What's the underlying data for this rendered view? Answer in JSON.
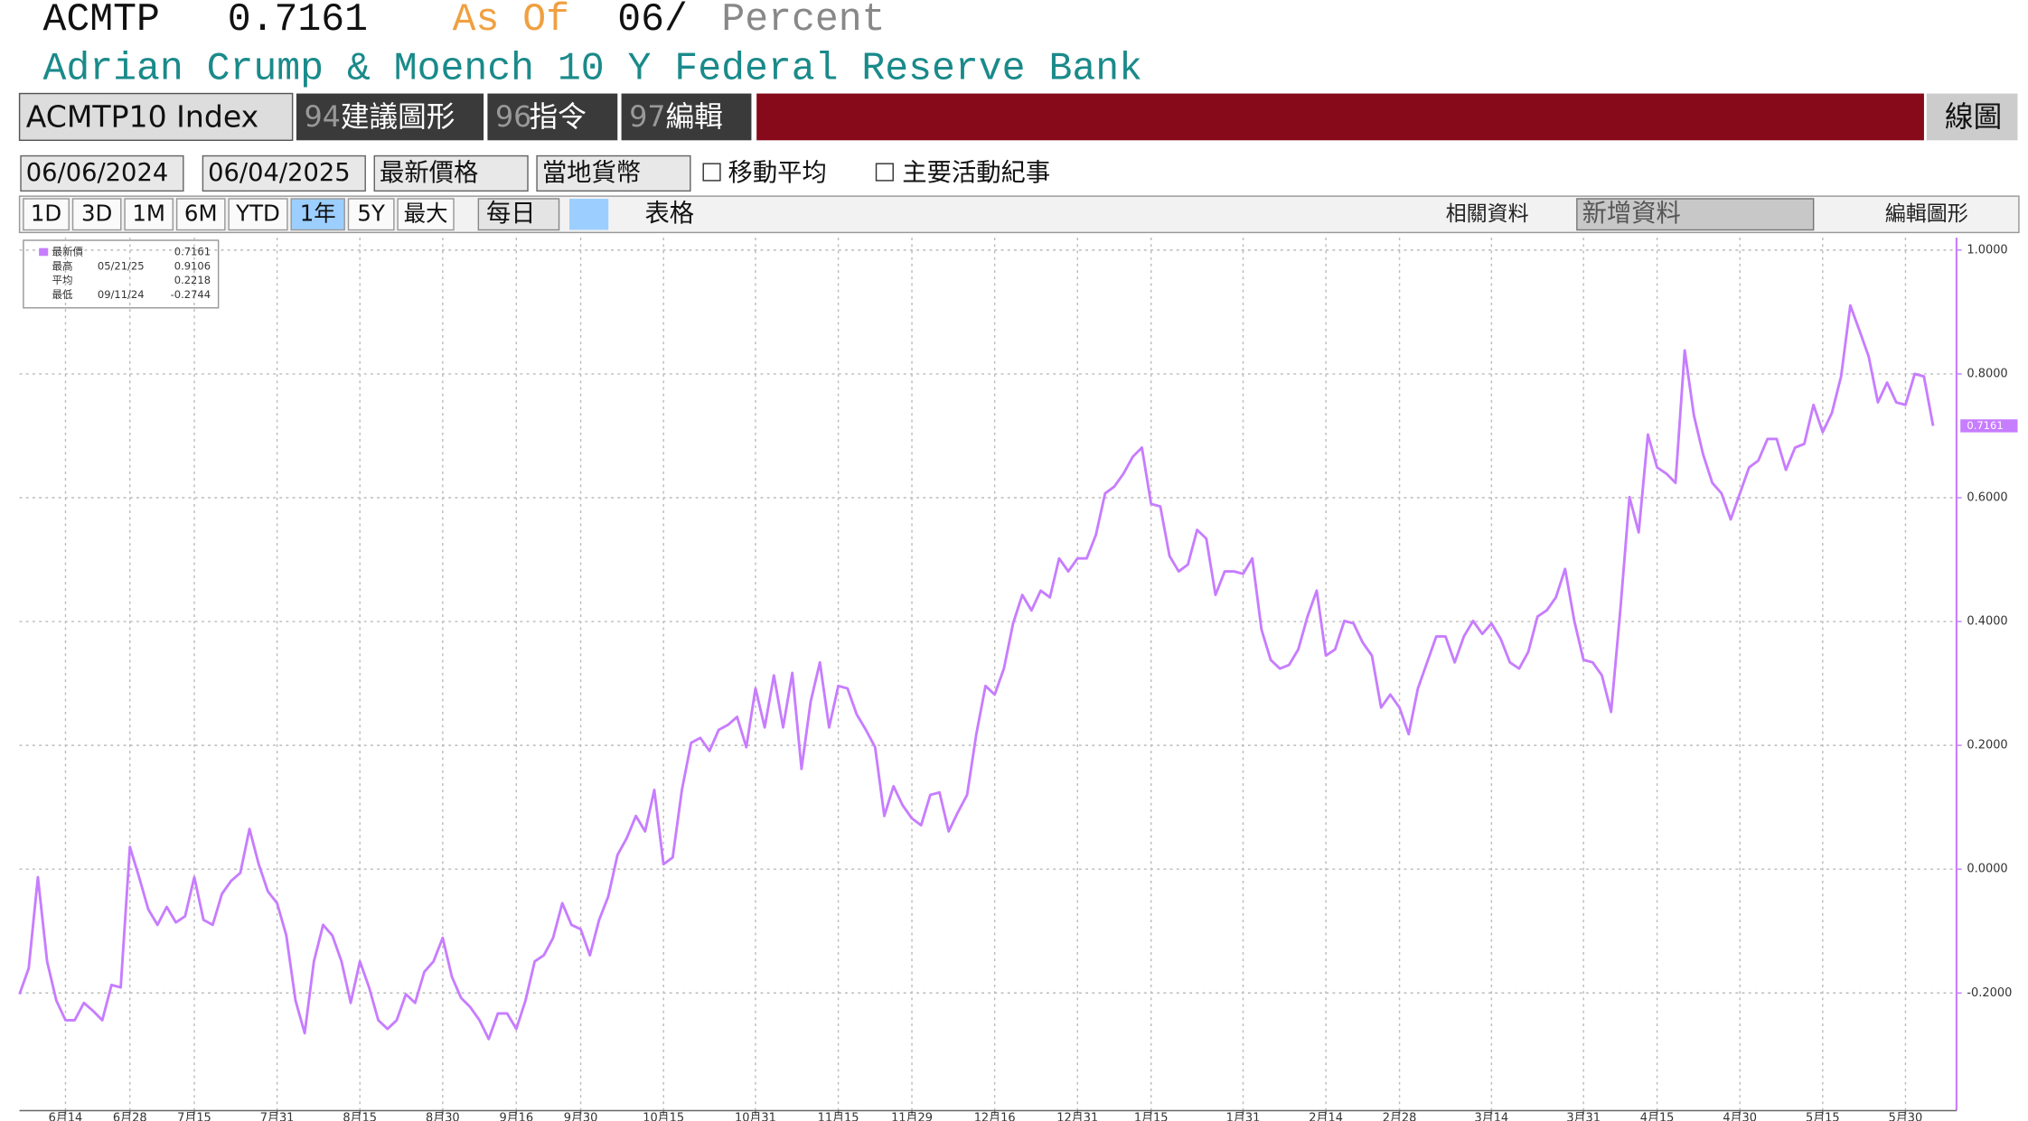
{
  "header": {
    "ticker": "ACMTP",
    "value": "0.7161",
    "as_of": "As Of",
    "date": "06/",
    "unit": "Percent",
    "description": "Adrian Crump & Moench 10 Y Federal Reserve Bank"
  },
  "toolbar": {
    "security": "ACMTP10 Index",
    "btn1_num": "94",
    "btn1": "建議圖形",
    "btn2_num": "96",
    "btn2": "指令",
    "btn3_num": "97",
    "btn3": "編輯",
    "right": "線圖"
  },
  "controls": {
    "start": "06/06/2024",
    "end": "06/04/2025",
    "field": "最新價格",
    "currency": "當地貨幣",
    "ma": "移動平均",
    "events": "主要活動紀事",
    "ranges": [
      "1D",
      "3D",
      "1M",
      "6M",
      "YTD",
      "1年",
      "5Y",
      "最大"
    ],
    "freq": "每日",
    "table": "表格",
    "related": "相關資料",
    "add": "新增資料",
    "edit": "編輯圖形"
  },
  "chart_data": {
    "type": "line",
    "color": "#c77dff",
    "grid": true,
    "xlim": [
      0,
      208
    ],
    "xticks": [
      {
        "value": 5,
        "label": "6月14"
      },
      {
        "value": 12,
        "label": "6月28"
      },
      {
        "value": 19,
        "label": "7月15"
      },
      {
        "value": 28,
        "label": "7月31"
      },
      {
        "value": 37,
        "label": "8月15"
      },
      {
        "value": 46,
        "label": "8月30"
      },
      {
        "value": 54,
        "label": "9月16"
      },
      {
        "value": 61,
        "label": "9月30"
      },
      {
        "value": 70,
        "label": "10月15"
      },
      {
        "value": 80,
        "label": "10月31"
      },
      {
        "value": 89,
        "label": "11月15"
      },
      {
        "value": 97,
        "label": "11月29"
      },
      {
        "value": 106,
        "label": "12月16"
      },
      {
        "value": 115,
        "label": "12月31"
      },
      {
        "value": 123,
        "label": "1月15"
      },
      {
        "value": 133,
        "label": "1月31"
      },
      {
        "value": 142,
        "label": "2月14"
      },
      {
        "value": 150,
        "label": "2月28"
      },
      {
        "value": 160,
        "label": "3月14"
      },
      {
        "value": 170,
        "label": "3月31"
      },
      {
        "value": 178,
        "label": "4月15"
      },
      {
        "value": 187,
        "label": "4月30"
      },
      {
        "value": 196,
        "label": "5月15"
      },
      {
        "value": 205,
        "label": "5月30"
      }
    ],
    "ylim": [
      -0.39,
      1.02
    ],
    "yticks": [
      {
        "value": -0.2,
        "label": "-0.2000"
      },
      {
        "value": 0,
        "label": "0.0000"
      },
      {
        "value": 0.2,
        "label": "0.2000"
      },
      {
        "value": 0.4,
        "label": "0.4000"
      },
      {
        "value": 0.6,
        "label": "0.6000"
      },
      {
        "value": 0.8,
        "label": "0.8000"
      },
      {
        "value": 1,
        "label": "1.0000"
      }
    ],
    "stats": [
      {
        "name": "最新價",
        "date": null,
        "value": 0.7161
      },
      {
        "name": "最高",
        "date": "05/21/25",
        "value": 0.9106
      },
      {
        "name": "平均",
        "date": null,
        "value": 0.2218
      },
      {
        "name": "最低",
        "date": "09/11/24",
        "value": -0.2744
      }
    ],
    "values": [
      -0.202,
      -0.16,
      -0.013,
      -0.149,
      -0.212,
      -0.244,
      -0.244,
      -0.216,
      -0.229,
      -0.244,
      -0.187,
      -0.191,
      0.036,
      -0.013,
      -0.065,
      -0.09,
      -0.061,
      -0.086,
      -0.076,
      -0.013,
      -0.082,
      -0.09,
      -0.04,
      -0.019,
      -0.006,
      0.065,
      0.008,
      -0.036,
      -0.055,
      -0.107,
      -0.212,
      -0.265,
      -0.149,
      -0.09,
      -0.107,
      -0.149,
      -0.216,
      -0.149,
      -0.191,
      -0.244,
      -0.258,
      -0.244,
      -0.202,
      -0.216,
      -0.166,
      -0.149,
      -0.111,
      -0.174,
      -0.208,
      -0.223,
      -0.244,
      -0.2744,
      -0.233,
      -0.233,
      -0.258,
      -0.212,
      -0.149,
      -0.139,
      -0.111,
      -0.055,
      -0.09,
      -0.097,
      -0.139,
      -0.082,
      -0.044,
      0.023,
      0.05,
      0.086,
      0.061,
      0.128,
      0.008,
      0.019,
      0.128,
      0.204,
      0.212,
      0.191,
      0.225,
      0.233,
      0.246,
      0.197,
      0.292,
      0.229,
      0.313,
      0.229,
      0.317,
      0.162,
      0.271,
      0.334,
      0.229,
      0.296,
      0.292,
      0.25,
      0.225,
      0.197,
      0.086,
      0.134,
      0.103,
      0.082,
      0.071,
      0.12,
      0.124,
      0.061,
      0.092,
      0.12,
      0.218,
      0.296,
      0.282,
      0.324,
      0.397,
      0.443,
      0.418,
      0.45,
      0.439,
      0.502,
      0.481,
      0.502,
      0.502,
      0.54,
      0.607,
      0.618,
      0.639,
      0.666,
      0.681,
      0.59,
      0.586,
      0.506,
      0.481,
      0.492,
      0.548,
      0.534,
      0.443,
      0.481,
      0.481,
      0.477,
      0.502,
      0.387,
      0.338,
      0.324,
      0.33,
      0.355,
      0.408,
      0.45,
      0.345,
      0.355,
      0.401,
      0.397,
      0.366,
      0.345,
      0.261,
      0.282,
      0.261,
      0.218,
      0.292,
      0.334,
      0.376,
      0.376,
      0.334,
      0.376,
      0.401,
      0.38,
      0.397,
      0.372,
      0.334,
      0.324,
      0.351,
      0.408,
      0.418,
      0.439,
      0.485,
      0.401,
      0.338,
      0.334,
      0.313,
      0.254,
      0.418,
      0.601,
      0.544,
      0.702,
      0.649,
      0.639,
      0.624,
      0.838,
      0.733,
      0.67,
      0.624,
      0.607,
      0.565,
      0.607,
      0.649,
      0.66,
      0.695,
      0.695,
      0.645,
      0.681,
      0.687,
      0.75,
      0.706,
      0.737,
      0.796,
      0.9106,
      0.87,
      0.828,
      0.754,
      0.786,
      0.754,
      0.75,
      0.8,
      0.796,
      0.7161
    ]
  }
}
